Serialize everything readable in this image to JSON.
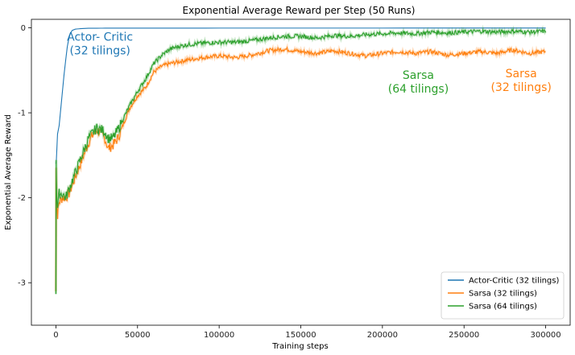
{
  "chart_data": {
    "type": "line",
    "title": "Exponential Average Reward per Step (50 Runs)",
    "xlabel": "Training steps",
    "ylabel": "Exponential Average Reward",
    "xlim": [
      -15000,
      315000
    ],
    "ylim": [
      -3.5,
      0.1
    ],
    "x_ticks": [
      0,
      50000,
      100000,
      150000,
      200000,
      250000,
      300000
    ],
    "y_ticks": [
      0,
      -1,
      -2,
      -3
    ],
    "legend_position": "lower-right",
    "series": [
      {
        "name": "Actor-Critic (32 tilings)",
        "color": "#1f77b4",
        "x": [
          0,
          300,
          1000,
          2000,
          3000,
          4000,
          5000,
          6000,
          7000,
          8000,
          9000,
          10000,
          12000,
          15000,
          20000,
          30000,
          50000,
          100000,
          150000,
          200000,
          250000,
          300000
        ],
        "y": [
          -1.6,
          -1.55,
          -1.25,
          -1.15,
          -0.95,
          -0.75,
          -0.55,
          -0.38,
          -0.22,
          -0.12,
          -0.06,
          -0.03,
          -0.015,
          -0.01,
          -0.005,
          -0.004,
          -0.004,
          -0.003,
          -0.003,
          -0.003,
          -0.002,
          -0.002
        ]
      },
      {
        "name": "Sarsa (32 tilings)",
        "color": "#ff7f0e",
        "x": [
          0,
          200,
          500,
          1000,
          2000,
          4000,
          6000,
          8000,
          10000,
          12000,
          15000,
          18000,
          20000,
          22000,
          25000,
          28000,
          30000,
          32000,
          35000,
          38000,
          40000,
          45000,
          50000,
          55000,
          60000,
          65000,
          70000,
          75000,
          80000,
          90000,
          100000,
          110000,
          120000,
          130000,
          140000,
          150000,
          160000,
          170000,
          180000,
          190000,
          200000,
          210000,
          220000,
          230000,
          240000,
          250000,
          260000,
          270000,
          280000,
          290000,
          300000
        ],
        "y": [
          -3.1,
          -1.6,
          -2.1,
          -2.2,
          -2.05,
          -2.0,
          -2.0,
          -1.95,
          -1.85,
          -1.75,
          -1.6,
          -1.45,
          -1.35,
          -1.28,
          -1.2,
          -1.25,
          -1.3,
          -1.42,
          -1.38,
          -1.3,
          -1.2,
          -0.95,
          -0.8,
          -0.7,
          -0.52,
          -0.45,
          -0.42,
          -0.4,
          -0.38,
          -0.35,
          -0.33,
          -0.35,
          -0.32,
          -0.27,
          -0.25,
          -0.28,
          -0.3,
          -0.27,
          -0.3,
          -0.33,
          -0.3,
          -0.28,
          -0.3,
          -0.28,
          -0.32,
          -0.3,
          -0.28,
          -0.3,
          -0.26,
          -0.3,
          -0.28
        ]
      },
      {
        "name": "Sarsa (64 tilings)",
        "color": "#2ca02c",
        "x": [
          0,
          200,
          500,
          1000,
          2000,
          4000,
          6000,
          8000,
          10000,
          12000,
          15000,
          18000,
          20000,
          22000,
          25000,
          28000,
          30000,
          32000,
          35000,
          38000,
          40000,
          45000,
          50000,
          55000,
          60000,
          65000,
          70000,
          75000,
          80000,
          90000,
          100000,
          110000,
          120000,
          130000,
          140000,
          150000,
          160000,
          170000,
          180000,
          190000,
          200000,
          210000,
          220000,
          230000,
          240000,
          250000,
          260000,
          270000,
          280000,
          290000,
          300000
        ],
        "y": [
          -3.1,
          -1.6,
          -1.95,
          -2.1,
          -1.95,
          -1.95,
          -2.0,
          -1.9,
          -1.8,
          -1.7,
          -1.55,
          -1.4,
          -1.3,
          -1.25,
          -1.18,
          -1.2,
          -1.22,
          -1.3,
          -1.3,
          -1.2,
          -1.12,
          -0.92,
          -0.75,
          -0.6,
          -0.42,
          -0.32,
          -0.25,
          -0.22,
          -0.2,
          -0.18,
          -0.17,
          -0.17,
          -0.15,
          -0.12,
          -0.1,
          -0.1,
          -0.12,
          -0.09,
          -0.1,
          -0.08,
          -0.07,
          -0.06,
          -0.07,
          -0.05,
          -0.06,
          -0.05,
          -0.04,
          -0.05,
          -0.04,
          -0.05,
          -0.04
        ]
      }
    ],
    "annotations": [
      {
        "text": [
          "Actor- Critic",
          "(32 tilings)"
        ],
        "x": 27000,
        "y": -0.15,
        "color": "#1f77b4"
      },
      {
        "text": [
          "Sarsa",
          "(64 tilings)"
        ],
        "x": 222000,
        "y": -0.6,
        "color": "#2ca02c"
      },
      {
        "text": [
          "Sarsa",
          "(32 tilings)"
        ],
        "x": 285000,
        "y": -0.58,
        "color": "#ff7f0e"
      }
    ]
  }
}
